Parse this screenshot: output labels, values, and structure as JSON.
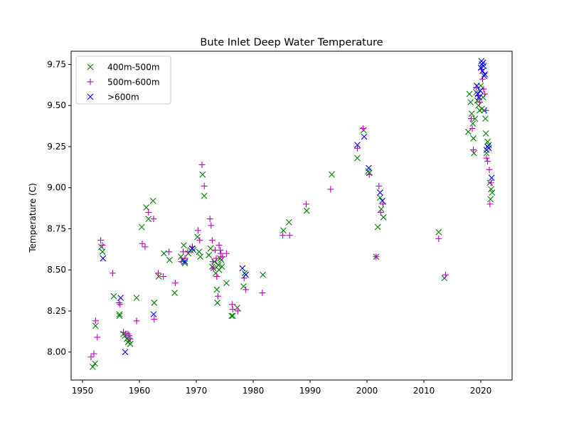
{
  "chart_data": {
    "type": "scatter",
    "title": "Bute Inlet Deep Water Temperature",
    "xlabel": "",
    "ylabel": "Temperature (C)",
    "xlim": [
      1948,
      2025.5
    ],
    "ylim": [
      7.83,
      9.83
    ],
    "xticks": [
      1950,
      1960,
      1970,
      1980,
      1990,
      2000,
      2010,
      2020
    ],
    "xtick_labels": [
      "1950",
      "1960",
      "1970",
      "1980",
      "1990",
      "2000",
      "2010",
      "2020"
    ],
    "yticks": [
      8.0,
      8.25,
      8.5,
      8.75,
      9.0,
      9.25,
      9.5,
      9.75
    ],
    "ytick_labels": [
      "8.00",
      "8.25",
      "8.50",
      "8.75",
      "9.00",
      "9.25",
      "9.50",
      "9.75"
    ],
    "grid": false,
    "legend_position": "top-left",
    "series": [
      {
        "name": "400m-500m",
        "marker": "x",
        "color": "#008000",
        "points": [
          [
            1951.8,
            7.91
          ],
          [
            1952.2,
            7.93
          ],
          [
            1952.3,
            8.16
          ],
          [
            1953.3,
            8.64
          ],
          [
            1953.5,
            8.61
          ],
          [
            1955.5,
            8.34
          ],
          [
            1956.5,
            8.23
          ],
          [
            1956.5,
            8.22
          ],
          [
            1957.2,
            8.11
          ],
          [
            1957.5,
            8.1
          ],
          [
            1957.8,
            8.08
          ],
          [
            1958.0,
            8.06
          ],
          [
            1958.2,
            8.07
          ],
          [
            1958.4,
            8.05
          ],
          [
            1959.5,
            8.33
          ],
          [
            1960.4,
            8.76
          ],
          [
            1961.2,
            8.88
          ],
          [
            1961.6,
            8.81
          ],
          [
            1962.4,
            8.92
          ],
          [
            1962.6,
            8.3
          ],
          [
            1963.4,
            8.46
          ],
          [
            1964.3,
            8.6
          ],
          [
            1965.3,
            8.56
          ],
          [
            1966.2,
            8.36
          ],
          [
            1967.3,
            8.58
          ],
          [
            1967.6,
            8.56
          ],
          [
            1967.8,
            8.65
          ],
          [
            1968.0,
            8.54
          ],
          [
            1968.6,
            8.6
          ],
          [
            1969.0,
            8.62
          ],
          [
            1969.5,
            8.62
          ],
          [
            1970.2,
            8.7
          ],
          [
            1970.5,
            8.61
          ],
          [
            1970.7,
            8.58
          ],
          [
            1971.1,
            9.08
          ],
          [
            1971.4,
            8.95
          ],
          [
            1972.2,
            8.59
          ],
          [
            1972.5,
            8.63
          ],
          [
            1972.8,
            8.52
          ],
          [
            1973.0,
            8.51
          ],
          [
            1973.2,
            8.55
          ],
          [
            1973.4,
            8.48
          ],
          [
            1973.6,
            8.38
          ],
          [
            1973.7,
            8.3
          ],
          [
            1973.9,
            8.53
          ],
          [
            1974.0,
            8.5
          ],
          [
            1974.2,
            8.57
          ],
          [
            1974.4,
            8.56
          ],
          [
            1974.5,
            8.52
          ],
          [
            1975.3,
            8.42
          ],
          [
            1976.2,
            8.22
          ],
          [
            1976.4,
            8.22
          ],
          [
            1977.2,
            8.27
          ],
          [
            1978.3,
            8.4
          ],
          [
            1978.5,
            8.48
          ],
          [
            1981.7,
            8.47
          ],
          [
            1985.3,
            8.74
          ],
          [
            1986.3,
            8.79
          ],
          [
            1989.4,
            8.86
          ],
          [
            1993.8,
            9.08
          ],
          [
            1998.3,
            9.18
          ],
          [
            1999.4,
            9.35
          ],
          [
            2000.2,
            9.1
          ],
          [
            2000.4,
            9.09
          ],
          [
            2001.6,
            8.58
          ],
          [
            2001.9,
            8.76
          ],
          [
            2002.3,
            8.94
          ],
          [
            2002.5,
            8.87
          ],
          [
            2002.9,
            8.82
          ],
          [
            2012.6,
            8.73
          ],
          [
            2013.6,
            8.45
          ],
          [
            2017.8,
            9.34
          ],
          [
            2018.0,
            9.57
          ],
          [
            2018.2,
            9.52
          ],
          [
            2018.4,
            9.45
          ],
          [
            2018.6,
            9.39
          ],
          [
            2018.7,
            9.3
          ],
          [
            2018.8,
            9.21
          ],
          [
            2019.0,
            9.42
          ],
          [
            2019.2,
            9.58
          ],
          [
            2019.4,
            9.53
          ],
          [
            2019.6,
            9.5
          ],
          [
            2019.8,
            9.47
          ],
          [
            2020.0,
            9.62
          ],
          [
            2020.2,
            9.48
          ],
          [
            2020.4,
            9.55
          ],
          [
            2020.6,
            9.47
          ],
          [
            2020.8,
            9.42
          ],
          [
            2020.9,
            9.33
          ],
          [
            2021.0,
            9.21
          ],
          [
            2021.2,
            9.28
          ],
          [
            2021.4,
            9.26
          ],
          [
            2021.6,
            9.03
          ],
          [
            2021.8,
            8.99
          ],
          [
            2022.0,
            8.97
          ],
          [
            2021.7,
            8.93
          ]
        ]
      },
      {
        "name": "500m-600m",
        "marker": "+",
        "color": "#bf00bf",
        "points": [
          [
            1951.5,
            7.97
          ],
          [
            1952.0,
            7.99
          ],
          [
            1952.3,
            8.19
          ],
          [
            1952.6,
            8.09
          ],
          [
            1953.2,
            8.68
          ],
          [
            1953.5,
            8.65
          ],
          [
            1955.3,
            8.48
          ],
          [
            1956.4,
            8.3
          ],
          [
            1956.6,
            8.29
          ],
          [
            1957.2,
            8.12
          ],
          [
            1957.6,
            8.11
          ],
          [
            1958.0,
            8.11
          ],
          [
            1958.2,
            8.1
          ],
          [
            1958.4,
            8.08
          ],
          [
            1959.5,
            8.19
          ],
          [
            1960.5,
            8.66
          ],
          [
            1961.0,
            8.64
          ],
          [
            1961.6,
            8.85
          ],
          [
            1962.5,
            8.81
          ],
          [
            1962.6,
            8.2
          ],
          [
            1963.3,
            8.48
          ],
          [
            1964.2,
            8.46
          ],
          [
            1965.2,
            8.61
          ],
          [
            1966.3,
            8.42
          ],
          [
            1967.4,
            8.55
          ],
          [
            1967.7,
            8.61
          ],
          [
            1968.0,
            8.57
          ],
          [
            1968.5,
            8.61
          ],
          [
            1969.3,
            8.64
          ],
          [
            1970.3,
            8.74
          ],
          [
            1970.6,
            8.68
          ],
          [
            1971.0,
            9.14
          ],
          [
            1971.4,
            9.01
          ],
          [
            1972.4,
            8.81
          ],
          [
            1972.6,
            8.77
          ],
          [
            1972.8,
            8.68
          ],
          [
            1972.9,
            8.55
          ],
          [
            1973.0,
            8.51
          ],
          [
            1973.3,
            8.62
          ],
          [
            1973.5,
            8.57
          ],
          [
            1973.6,
            8.46
          ],
          [
            1973.8,
            8.34
          ],
          [
            1974.0,
            8.65
          ],
          [
            1974.2,
            8.62
          ],
          [
            1974.3,
            8.6
          ],
          [
            1974.6,
            8.58
          ],
          [
            1975.3,
            8.6
          ],
          [
            1976.3,
            8.29
          ],
          [
            1976.4,
            8.26
          ],
          [
            1977.3,
            8.25
          ],
          [
            1978.4,
            8.45
          ],
          [
            1978.7,
            8.38
          ],
          [
            1981.6,
            8.36
          ],
          [
            1985.2,
            8.71
          ],
          [
            1986.4,
            8.71
          ],
          [
            1989.3,
            8.9
          ],
          [
            1993.6,
            8.99
          ],
          [
            1998.3,
            9.24
          ],
          [
            1999.3,
            9.36
          ],
          [
            2000.4,
            9.08
          ],
          [
            2001.6,
            8.58
          ],
          [
            2002.1,
            9.01
          ],
          [
            2002.4,
            8.85
          ],
          [
            2002.8,
            8.9
          ],
          [
            2012.6,
            8.69
          ],
          [
            2013.8,
            8.47
          ],
          [
            2018.3,
            9.42
          ],
          [
            2018.5,
            9.36
          ],
          [
            2018.7,
            9.23
          ],
          [
            2019.2,
            9.61
          ],
          [
            2019.5,
            9.56
          ],
          [
            2019.8,
            9.52
          ],
          [
            2020.3,
            9.66
          ],
          [
            2020.5,
            9.6
          ],
          [
            2020.7,
            9.57
          ],
          [
            2020.9,
            9.47
          ],
          [
            2021.0,
            9.18
          ],
          [
            2021.2,
            9.16
          ],
          [
            2021.5,
            9.11
          ],
          [
            2021.8,
            9.03
          ],
          [
            2021.6,
            8.9
          ],
          [
            2020.1,
            9.72
          ]
        ]
      },
      {
        "name": ">600m",
        "marker": "x",
        "color": "#0000ff",
        "points": [
          [
            1953.6,
            8.57
          ],
          [
            1956.7,
            8.33
          ],
          [
            1957.5,
            8.0
          ],
          [
            1962.5,
            8.23
          ],
          [
            1968.0,
            8.55
          ],
          [
            1969.3,
            8.63
          ],
          [
            1978.1,
            8.51
          ],
          [
            1978.7,
            8.47
          ],
          [
            1998.3,
            9.26
          ],
          [
            1999.5,
            9.31
          ],
          [
            2000.3,
            9.12
          ],
          [
            2002.3,
            8.97
          ],
          [
            2002.7,
            8.92
          ],
          [
            2019.3,
            9.62
          ],
          [
            2019.5,
            9.57
          ],
          [
            2019.7,
            9.55
          ],
          [
            2019.9,
            9.59
          ],
          [
            2020.0,
            9.73
          ],
          [
            2020.1,
            9.77
          ],
          [
            2020.2,
            9.75
          ],
          [
            2020.3,
            9.71
          ],
          [
            2020.4,
            9.76
          ],
          [
            2020.5,
            9.74
          ],
          [
            2020.6,
            9.68
          ],
          [
            2020.7,
            9.69
          ],
          [
            2021.0,
            9.23
          ],
          [
            2021.2,
            9.25
          ],
          [
            2021.4,
            9.24
          ],
          [
            2021.9,
            9.06
          ]
        ]
      }
    ]
  }
}
